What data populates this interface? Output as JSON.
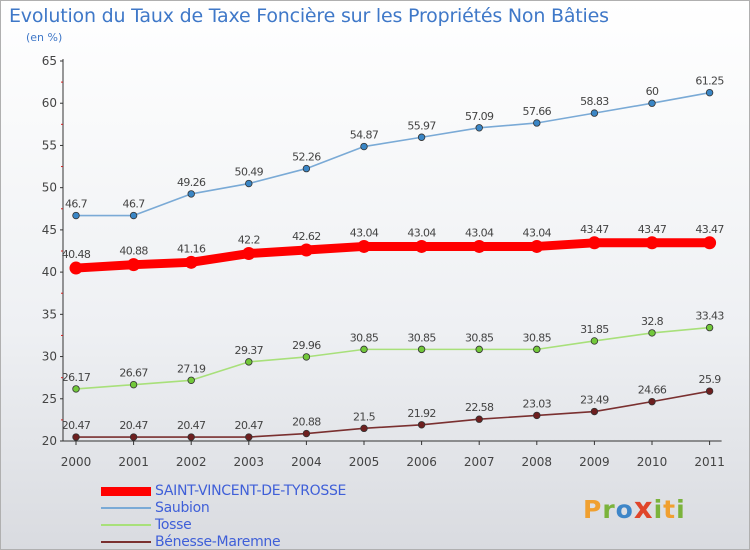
{
  "header": {
    "title": "Evolution du Taux de Taxe Foncière sur les Propriétés Non Bâties",
    "unit": "(en %)"
  },
  "brand": {
    "logo_letters": [
      "P",
      "r",
      "o",
      "x",
      "i",
      "t",
      "i"
    ],
    "logo_colors": [
      "#f0a030",
      "#7bb33c",
      "#3e86c8",
      "#e0452a",
      "#7bb33c",
      "#f0a030",
      "#7bb33c"
    ]
  },
  "chart_data": {
    "type": "line",
    "title": "Evolution du Taux de Taxe Foncière sur les Propriétés Non Bâties",
    "ylabel": "(en %)",
    "xlabel": "",
    "ylim": [
      20,
      65
    ],
    "yticks": [
      20,
      25,
      30,
      35,
      40,
      45,
      50,
      55,
      60,
      65
    ],
    "categories": [
      "2000",
      "2001",
      "2002",
      "2003",
      "2004",
      "2005",
      "2006",
      "2007",
      "2008",
      "2009",
      "2010",
      "2011"
    ],
    "grid": false,
    "legend_position": "bottom-left",
    "series": [
      {
        "name": "SAINT-VINCENT-DE-TYROSSE",
        "color": "#ff0000",
        "marker_color": "#ff0000",
        "emphasis": true,
        "values": [
          40.48,
          40.88,
          41.16,
          42.2,
          42.62,
          43.04,
          43.04,
          43.04,
          43.04,
          43.47,
          43.47,
          43.47
        ],
        "labels": [
          "40.48",
          "40.88",
          "41.16",
          "42.2",
          "42.62",
          "43.04",
          "43.04",
          "43.04",
          "43.04",
          "43.47",
          "43.47",
          "43.47"
        ]
      },
      {
        "name": "Saubion",
        "color": "#7aaad6",
        "marker_color": "#3a86c6",
        "emphasis": false,
        "values": [
          46.7,
          46.7,
          49.26,
          50.49,
          52.26,
          54.87,
          55.97,
          57.09,
          57.66,
          58.83,
          60,
          61.25
        ],
        "labels": [
          "46.7",
          "46.7",
          "49.26",
          "50.49",
          "52.26",
          "54.87",
          "55.97",
          "57.09",
          "57.66",
          "58.83",
          "60",
          "61.25"
        ]
      },
      {
        "name": "Tosse",
        "color": "#a8e07a",
        "marker_color": "#72c83a",
        "emphasis": false,
        "values": [
          26.17,
          26.67,
          27.19,
          29.37,
          29.96,
          30.85,
          30.85,
          30.85,
          30.85,
          31.85,
          32.8,
          33.43
        ],
        "labels": [
          "26.17",
          "26.67",
          "27.19",
          "29.37",
          "29.96",
          "30.85",
          "30.85",
          "30.85",
          "30.85",
          "31.85",
          "32.8",
          "33.43"
        ]
      },
      {
        "name": "Bénesse-Maremne",
        "color": "#7a3030",
        "marker_color": "#6e1f1f",
        "emphasis": false,
        "values": [
          20.47,
          20.47,
          20.47,
          20.47,
          20.88,
          21.5,
          21.92,
          22.58,
          23.03,
          23.49,
          24.66,
          25.9
        ],
        "labels": [
          "20.47",
          "20.47",
          "20.47",
          "20.47",
          "20.88",
          "21.5",
          "21.92",
          "22.58",
          "23.03",
          "23.49",
          "24.66",
          "25.9"
        ]
      }
    ]
  }
}
